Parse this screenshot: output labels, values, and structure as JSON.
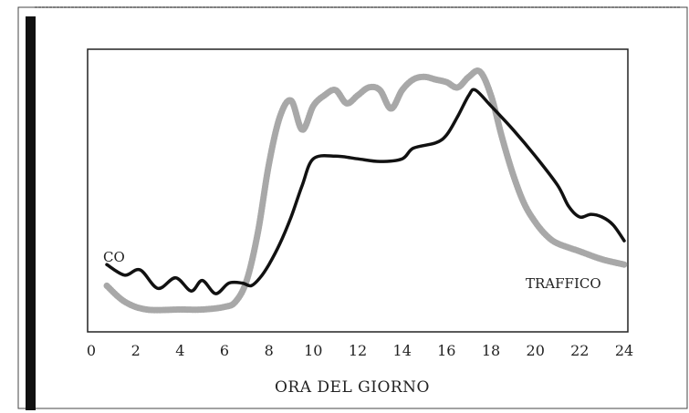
{
  "chart_data": {
    "type": "line",
    "title": "",
    "xlabel": "ORA DEL GIORNO",
    "ylabel": "",
    "xlim": [
      0,
      24
    ],
    "ylim": [
      0,
      100
    ],
    "grid": false,
    "x_ticks": [
      "0",
      "2",
      "4",
      "6",
      "8",
      "10",
      "12",
      "14",
      "16",
      "18",
      "20",
      "22",
      "24"
    ],
    "series": [
      {
        "name": "CO",
        "color": "#111111",
        "x": [
          0.7,
          1.5,
          2.2,
          3.0,
          3.8,
          4.5,
          5.0,
          5.6,
          6.2,
          6.8,
          7.2,
          7.6,
          8.0,
          8.5,
          9.0,
          9.5,
          10.0,
          11.0,
          12.0,
          13.0,
          14.0,
          14.5,
          15.5,
          16.0,
          16.5,
          17.0,
          17.3,
          18.0,
          19.0,
          20.0,
          21.0,
          21.5,
          22.0,
          22.5,
          23.0,
          23.5,
          24.0
        ],
        "values": [
          22,
          18,
          20,
          13,
          17,
          12,
          16,
          11,
          15,
          15,
          14,
          17,
          22,
          30,
          40,
          52,
          62,
          63,
          62,
          61,
          62,
          66,
          68,
          71,
          78,
          86,
          88,
          82,
          73,
          63,
          52,
          44,
          40,
          41,
          40,
          37,
          31
        ]
      },
      {
        "name": "TRAFFICO",
        "color": "#a8a8a8",
        "x": [
          0.7,
          1.5,
          2.5,
          4.0,
          5.0,
          6.0,
          6.5,
          7.0,
          7.5,
          8.0,
          8.5,
          9.0,
          9.5,
          10.0,
          10.5,
          11.0,
          11.5,
          12.0,
          12.5,
          13.0,
          13.5,
          14.0,
          14.5,
          15.0,
          15.5,
          16.0,
          16.5,
          17.0,
          17.5,
          18.0,
          18.5,
          19.0,
          19.5,
          20.0,
          20.5,
          21.0,
          22.0,
          23.0,
          24.0
        ],
        "values": [
          14,
          8,
          5,
          5,
          5,
          6,
          8,
          16,
          34,
          60,
          78,
          84,
          73,
          82,
          86,
          88,
          83,
          86,
          89,
          88,
          81,
          88,
          92,
          93,
          92,
          91,
          89,
          93,
          95,
          86,
          70,
          56,
          45,
          38,
          33,
          30,
          27,
          24,
          22
        ]
      }
    ]
  }
}
